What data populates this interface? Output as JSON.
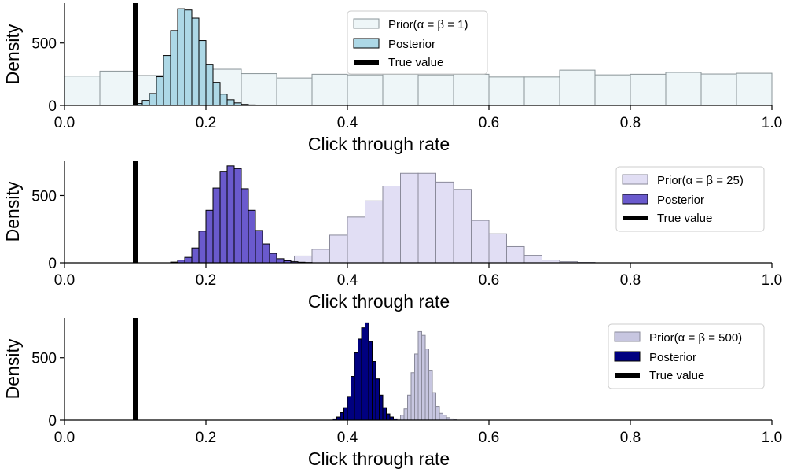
{
  "chart_data": [
    {
      "type": "histogram",
      "xlabel": "Click through rate",
      "ylabel": "Density",
      "xlim": [
        0.0,
        1.0
      ],
      "ylim": [
        0,
        820
      ],
      "xticks": [
        "0.0",
        "0.2",
        "0.4",
        "0.6",
        "0.8",
        "1.0"
      ],
      "yticks": [
        "0",
        "500"
      ],
      "true_value": 0.1,
      "legend_position": "top-center",
      "legend": {
        "prior": "Prior(α = β = 1)",
        "posterior": "Posterior",
        "truth": "True value"
      },
      "colors": {
        "prior": "#eef6f8",
        "prior_edge": "#8a9498",
        "posterior": "#add8e6",
        "posterior_edge": "#000000",
        "truth": "#000000"
      },
      "prior": {
        "bin_start": 0.0,
        "bin_width": 0.05,
        "values": [
          235,
          275,
          240,
          240,
          290,
          255,
          220,
          250,
          245,
          250,
          245,
          250,
          228,
          228,
          283,
          245,
          250,
          265,
          252,
          258
        ]
      },
      "posterior": {
        "bin_start": 0.09,
        "bin_width": 0.01,
        "values": [
          3,
          15,
          40,
          95,
          230,
          400,
          600,
          775,
          765,
          700,
          520,
          330,
          185,
          90,
          45,
          20,
          8,
          4,
          2,
          1,
          1
        ]
      }
    },
    {
      "type": "histogram",
      "xlabel": "Click through rate",
      "ylabel": "Density",
      "xlim": [
        0.0,
        1.0
      ],
      "ylim": [
        0,
        760
      ],
      "xticks": [
        "0.0",
        "0.2",
        "0.4",
        "0.6",
        "0.8",
        "1.0"
      ],
      "yticks": [
        "0",
        "500"
      ],
      "true_value": 0.1,
      "legend_position": "top-right",
      "legend": {
        "prior": "Prior(α = β = 25)",
        "posterior": "Posterior",
        "truth": "True value"
      },
      "colors": {
        "prior": "#e1def4",
        "prior_edge": "#8a8a9a",
        "posterior": "#6a5acd",
        "posterior_edge": "#000000",
        "truth": "#000000"
      },
      "prior": {
        "bin_start": 0.3,
        "bin_width": 0.025,
        "values": [
          20,
          50,
          100,
          205,
          340,
          460,
          570,
          665,
          665,
          600,
          545,
          315,
          215,
          120,
          55,
          20,
          8,
          3
        ]
      },
      "posterior": {
        "bin_start": 0.15,
        "bin_width": 0.01,
        "values": [
          5,
          20,
          40,
          110,
          235,
          390,
          555,
          680,
          720,
          700,
          550,
          390,
          240,
          140,
          70,
          30,
          15,
          8,
          4,
          2
        ]
      }
    },
    {
      "type": "histogram",
      "xlabel": "Click through rate",
      "ylabel": "Density",
      "xlim": [
        0.0,
        1.0
      ],
      "ylim": [
        0,
        820
      ],
      "xticks": [
        "0.0",
        "0.2",
        "0.4",
        "0.6",
        "0.8",
        "1.0"
      ],
      "yticks": [
        "0",
        "500"
      ],
      "true_value": 0.1,
      "legend_position": "top-right",
      "legend": {
        "prior": "Prior(α = β = 500)",
        "posterior": "Posterior",
        "truth": "True value"
      },
      "colors": {
        "prior": "#c7c6e0",
        "prior_edge": "#8a8a9a",
        "posterior": "#000080",
        "posterior_edge": "#000000",
        "truth": "#000000"
      },
      "prior": {
        "bin_start": 0.47,
        "bin_width": 0.005,
        "values": [
          10,
          40,
          90,
          200,
          380,
          530,
          710,
          680,
          570,
          400,
          220,
          110,
          55,
          40,
          20,
          10,
          5
        ]
      },
      "posterior": {
        "bin_start": 0.38,
        "bin_width": 0.005,
        "values": [
          10,
          25,
          60,
          100,
          190,
          350,
          540,
          650,
          740,
          780,
          630,
          470,
          330,
          200,
          100,
          50,
          25,
          10
        ]
      }
    }
  ]
}
